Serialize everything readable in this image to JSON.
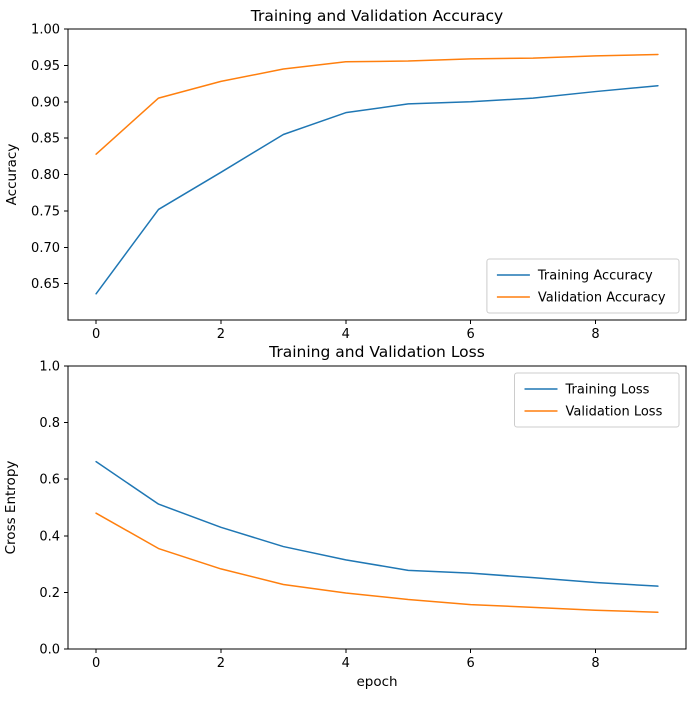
{
  "figure": {
    "background": "#ffffff",
    "text_color": "#000000",
    "axes_color": "#000000",
    "legend_border_color": "#cccccc"
  },
  "chart_data": [
    {
      "type": "line",
      "title": "Training and Validation Accuracy",
      "xlabel": "",
      "ylabel": "Accuracy",
      "x": [
        0,
        1,
        2,
        3,
        4,
        5,
        6,
        7,
        8,
        9
      ],
      "xlim": [
        -0.45,
        9.45
      ],
      "ylim": [
        0.6,
        1.0
      ],
      "xticks": [
        0,
        2,
        4,
        6,
        8
      ],
      "xtick_labels": [
        "0",
        "2",
        "4",
        "6",
        "8"
      ],
      "yticks": [
        0.65,
        0.7,
        0.75,
        0.8,
        0.85,
        0.9,
        0.95,
        1.0
      ],
      "ytick_labels": [
        "0.65",
        "0.70",
        "0.75",
        "0.80",
        "0.85",
        "0.90",
        "0.95",
        "1.00"
      ],
      "grid": false,
      "legend": {
        "position": "lower-right"
      },
      "series": [
        {
          "name": "Training Accuracy",
          "color": "#1f77b4",
          "values": [
            0.636,
            0.752,
            0.803,
            0.855,
            0.885,
            0.897,
            0.9,
            0.905,
            0.914,
            0.922
          ]
        },
        {
          "name": "Validation Accuracy",
          "color": "#ff7f0e",
          "values": [
            0.828,
            0.905,
            0.928,
            0.945,
            0.955,
            0.956,
            0.959,
            0.96,
            0.963,
            0.965
          ]
        }
      ]
    },
    {
      "type": "line",
      "title": "Training and Validation Loss",
      "xlabel": "epoch",
      "ylabel": "Cross Entropy",
      "x": [
        0,
        1,
        2,
        3,
        4,
        5,
        6,
        7,
        8,
        9
      ],
      "xlim": [
        -0.45,
        9.45
      ],
      "ylim": [
        0.0,
        1.0
      ],
      "xticks": [
        0,
        2,
        4,
        6,
        8
      ],
      "xtick_labels": [
        "0",
        "2",
        "4",
        "6",
        "8"
      ],
      "yticks": [
        0.0,
        0.2,
        0.4,
        0.6,
        0.8,
        1.0
      ],
      "ytick_labels": [
        "0.0",
        "0.2",
        "0.4",
        "0.6",
        "0.8",
        "1.0"
      ],
      "grid": false,
      "legend": {
        "position": "upper-right"
      },
      "series": [
        {
          "name": "Training Loss",
          "color": "#1f77b4",
          "values": [
            0.662,
            0.512,
            0.43,
            0.362,
            0.315,
            0.278,
            0.268,
            0.252,
            0.235,
            0.222
          ]
        },
        {
          "name": "Validation Loss",
          "color": "#ff7f0e",
          "values": [
            0.48,
            0.355,
            0.283,
            0.228,
            0.198,
            0.175,
            0.157,
            0.147,
            0.137,
            0.13
          ]
        }
      ]
    }
  ]
}
